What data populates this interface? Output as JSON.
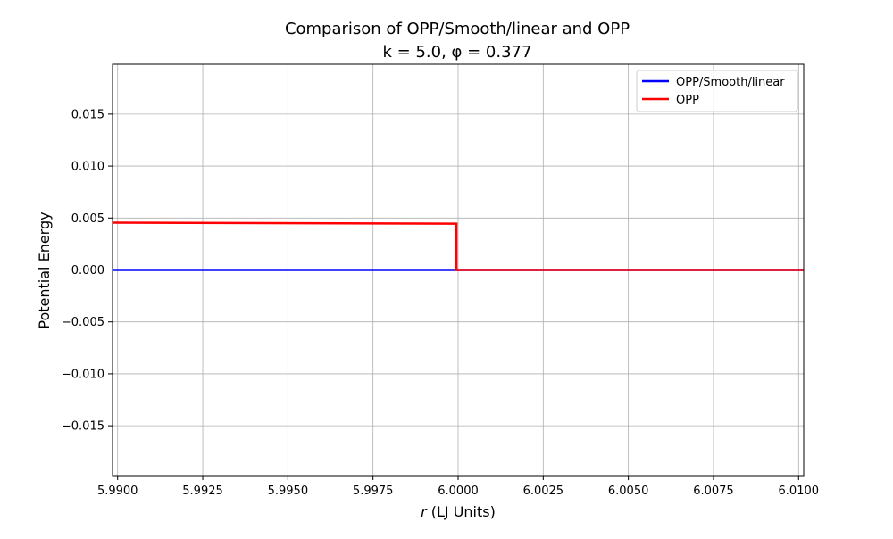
{
  "chart_data": {
    "type": "line",
    "title": "Comparison of OPP/Smooth/linear and OPP",
    "subtitle": "k = 5.0, φ = 0.377",
    "xlabel_var": "r",
    "xlabel_unit": "(LJ Units)",
    "ylabel": "Potential Energy",
    "xlim": [
      5.98985,
      6.01015
    ],
    "ylim": [
      -0.0198,
      0.0198
    ],
    "xticks": [
      5.99,
      5.9925,
      5.995,
      5.9975,
      6.0,
      6.0025,
      6.005,
      6.0075,
      6.01
    ],
    "xtick_labels": [
      "5.9900",
      "5.9925",
      "5.9950",
      "5.9975",
      "6.0000",
      "6.0025",
      "6.0050",
      "6.0075",
      "6.0100"
    ],
    "yticks": [
      0.015,
      0.01,
      0.005,
      0.0,
      -0.005,
      -0.01,
      -0.015
    ],
    "ytick_labels": [
      "0.015",
      "0.010",
      "0.005",
      "0.000",
      "−0.005",
      "−0.010",
      "−0.015"
    ],
    "grid": true,
    "legend_position": "top-right",
    "series": [
      {
        "name": "OPP/Smooth/linear",
        "color": "#0000ff",
        "x": [
          5.98985,
          5.99995,
          6.0,
          6.01015
        ],
        "y": [
          0.0,
          0.0,
          0.0,
          0.0
        ]
      },
      {
        "name": "OPP",
        "color": "#ff0000",
        "x": [
          5.98985,
          5.99995,
          5.99995,
          6.01015
        ],
        "y": [
          0.00455,
          0.00446,
          0.0,
          0.0
        ]
      }
    ]
  }
}
